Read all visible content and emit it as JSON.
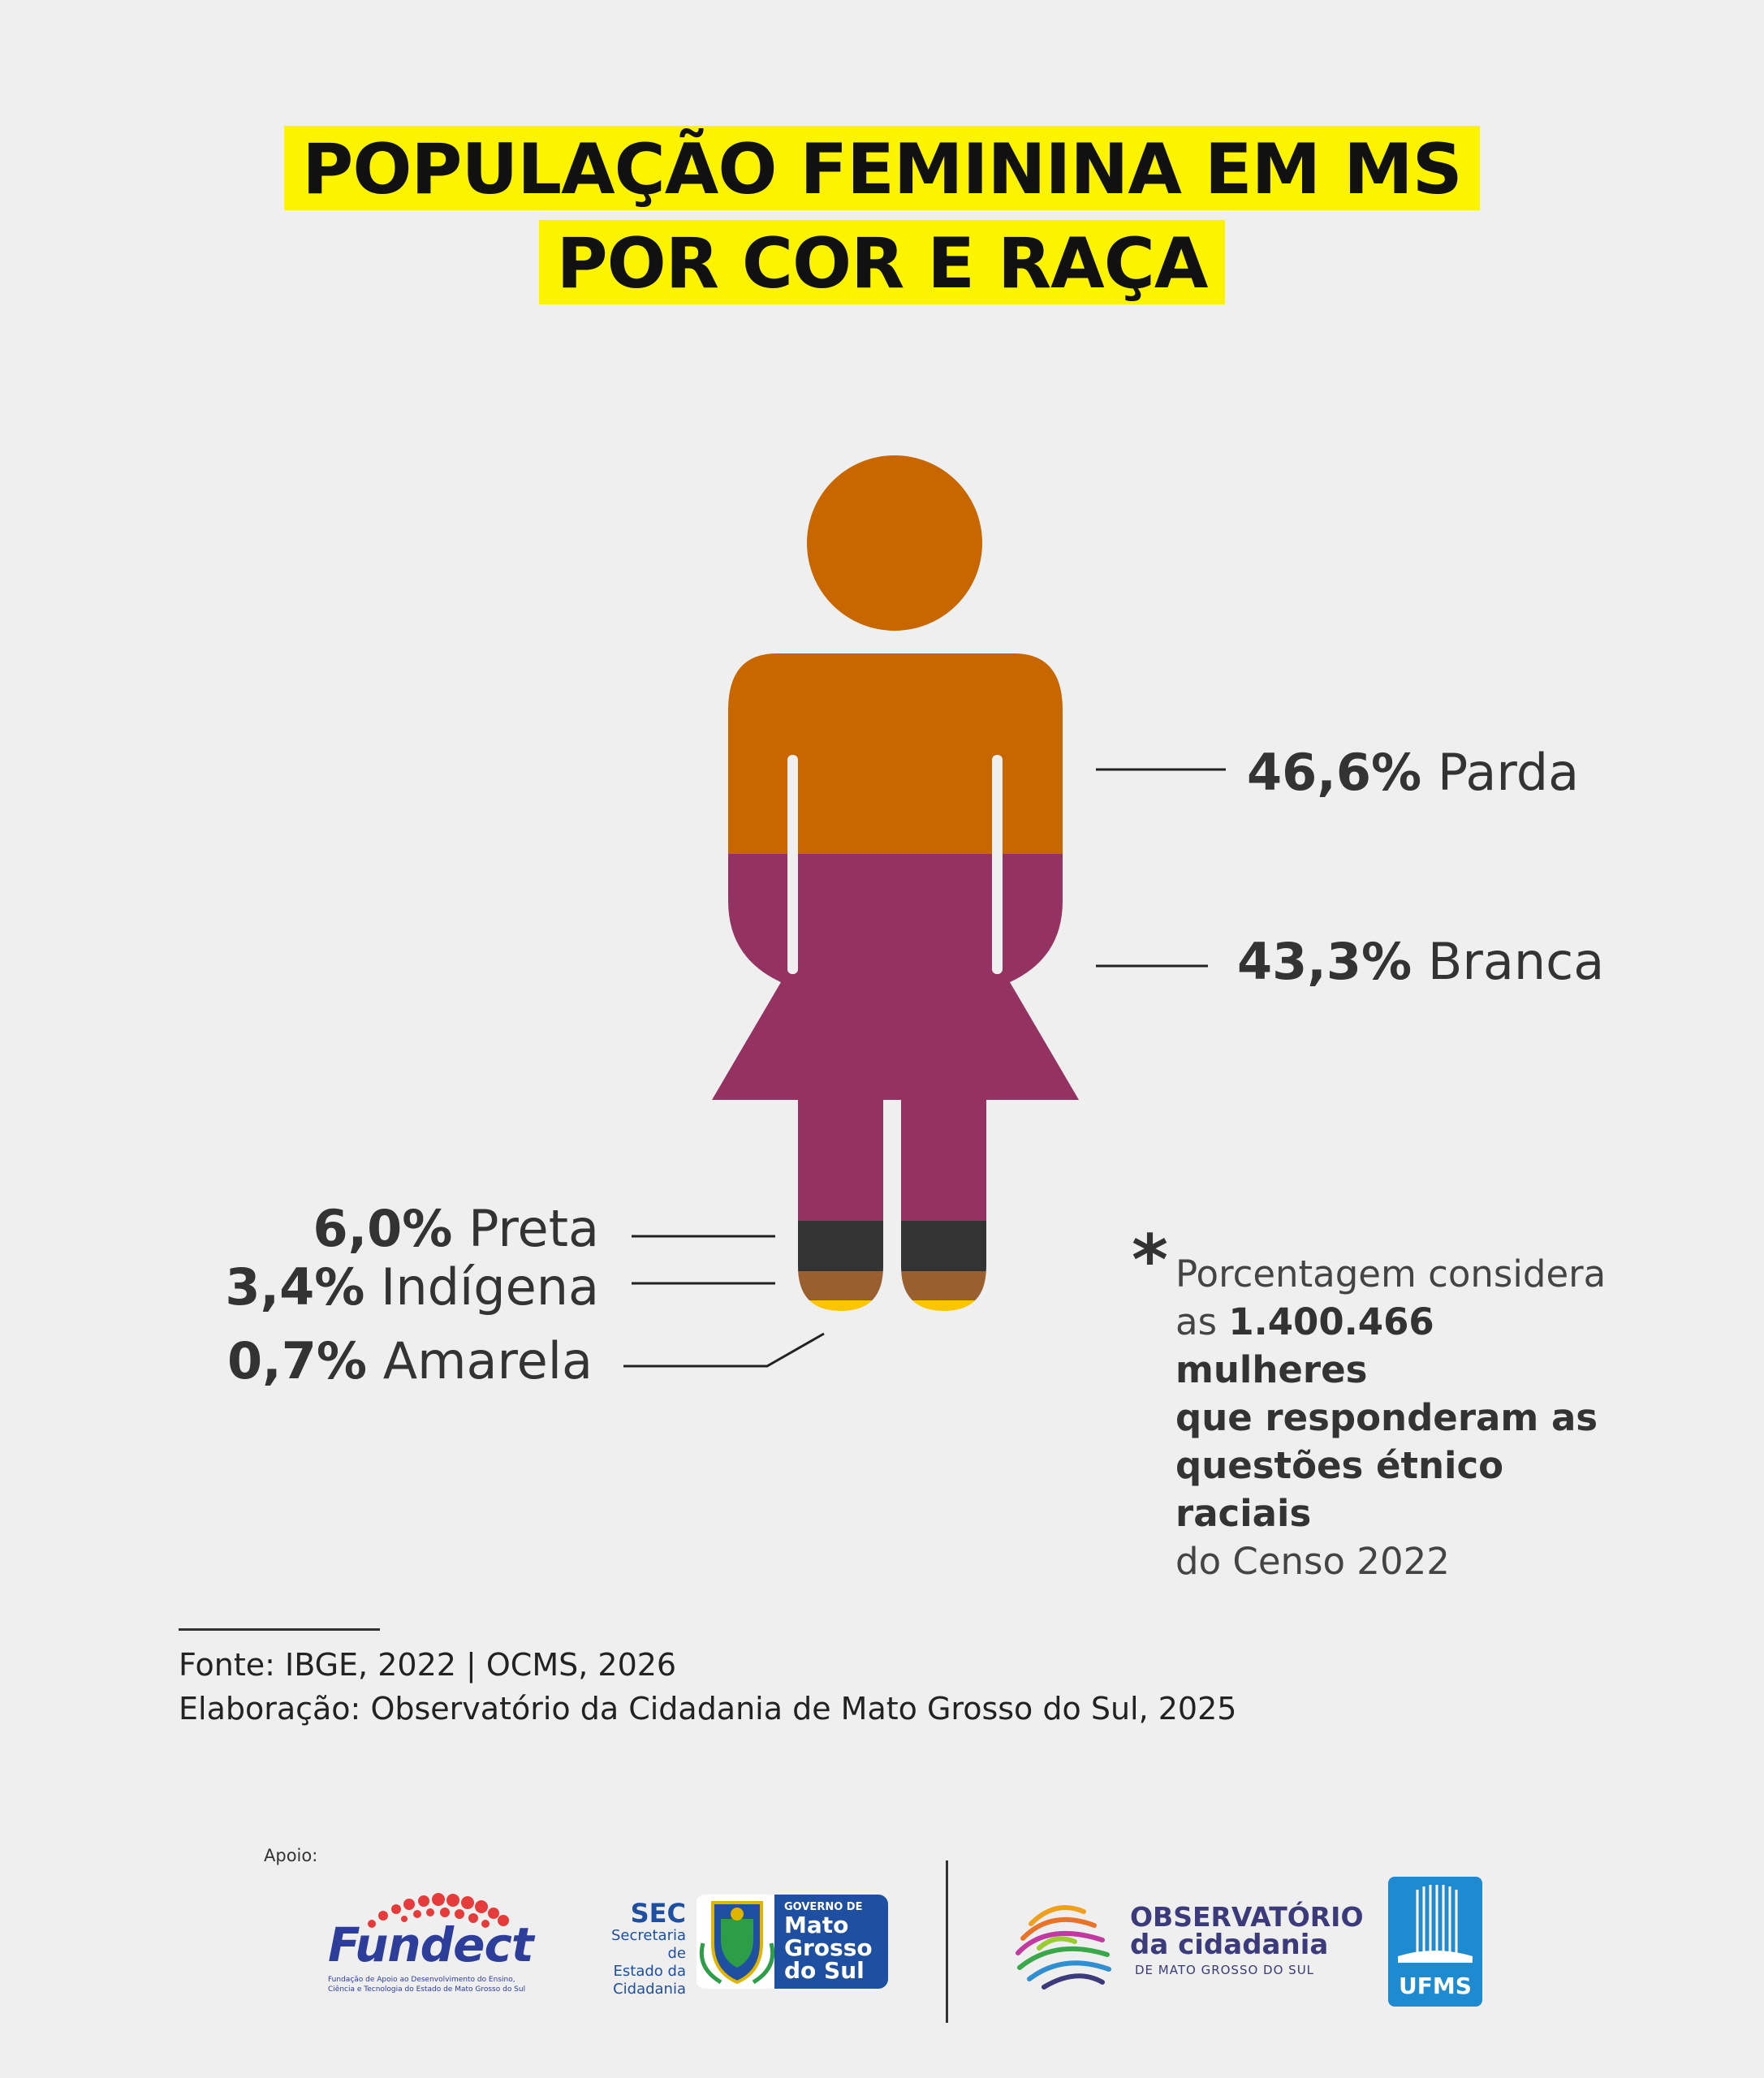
{
  "title": {
    "line1": "POPULAÇÃO FEMININA EM MS",
    "line2": "POR COR E RAÇA"
  },
  "chart_data": {
    "type": "pictogram",
    "unit": "%",
    "categories": [
      "Parda",
      "Branca",
      "Preta",
      "Indígena",
      "Amarela"
    ],
    "values": [
      46.6,
      43.3,
      6.0,
      3.4,
      0.7
    ],
    "value_labels": [
      "46,6%",
      "43,3%",
      "6,0%",
      "3,4%",
      "0,7%"
    ],
    "colors": [
      "#c86600",
      "#943362",
      "#333333",
      "#9a5f2f",
      "#fbc500"
    ]
  },
  "note": {
    "star": "*",
    "text1": "Porcentagem considera",
    "text2_pre": "as ",
    "text2_bold": "1.400.466 mulheres",
    "text3": "que responderam as",
    "text4": "questões étnico raciais",
    "text5": "do Censo 2022"
  },
  "source": {
    "line1": "Fonte: IBGE, 2022 | OCMS, 2026",
    "line2": "Elaboração: Observatório da Cidadania de Mato Grosso do Sul, 2025"
  },
  "footer": {
    "apoio": "Apoio:",
    "fundect_name": "Fundect",
    "fundect_sub1": "Fundação de Apoio ao Desenvolvimento do Ensino,",
    "fundect_sub2": "Ciência e Tecnologia do Estado de Mato Grosso do Sul",
    "sec_name": "SEC",
    "sec_sub1": "Secretaria de",
    "sec_sub2": "Estado da",
    "sec_sub3": "Cidadania",
    "gov_top": "GOVERNO DE",
    "gov_l1": "Mato",
    "gov_l2": "Grosso",
    "gov_l3": "do Sul",
    "obs_l1": "OBSERVATÓRIO",
    "obs_l2": "da cidadania",
    "obs_l3": "DE MATO GROSSO DO SUL",
    "ufms": "UFMS",
    "brand_colors": {
      "fundect_blue": "#2c3e9a",
      "fundect_red": "#e53b3b",
      "gov_blue": "#1f4fa0",
      "obs_navy": "#3b3a7a",
      "ufms_blue": "#1e8bd0"
    }
  }
}
